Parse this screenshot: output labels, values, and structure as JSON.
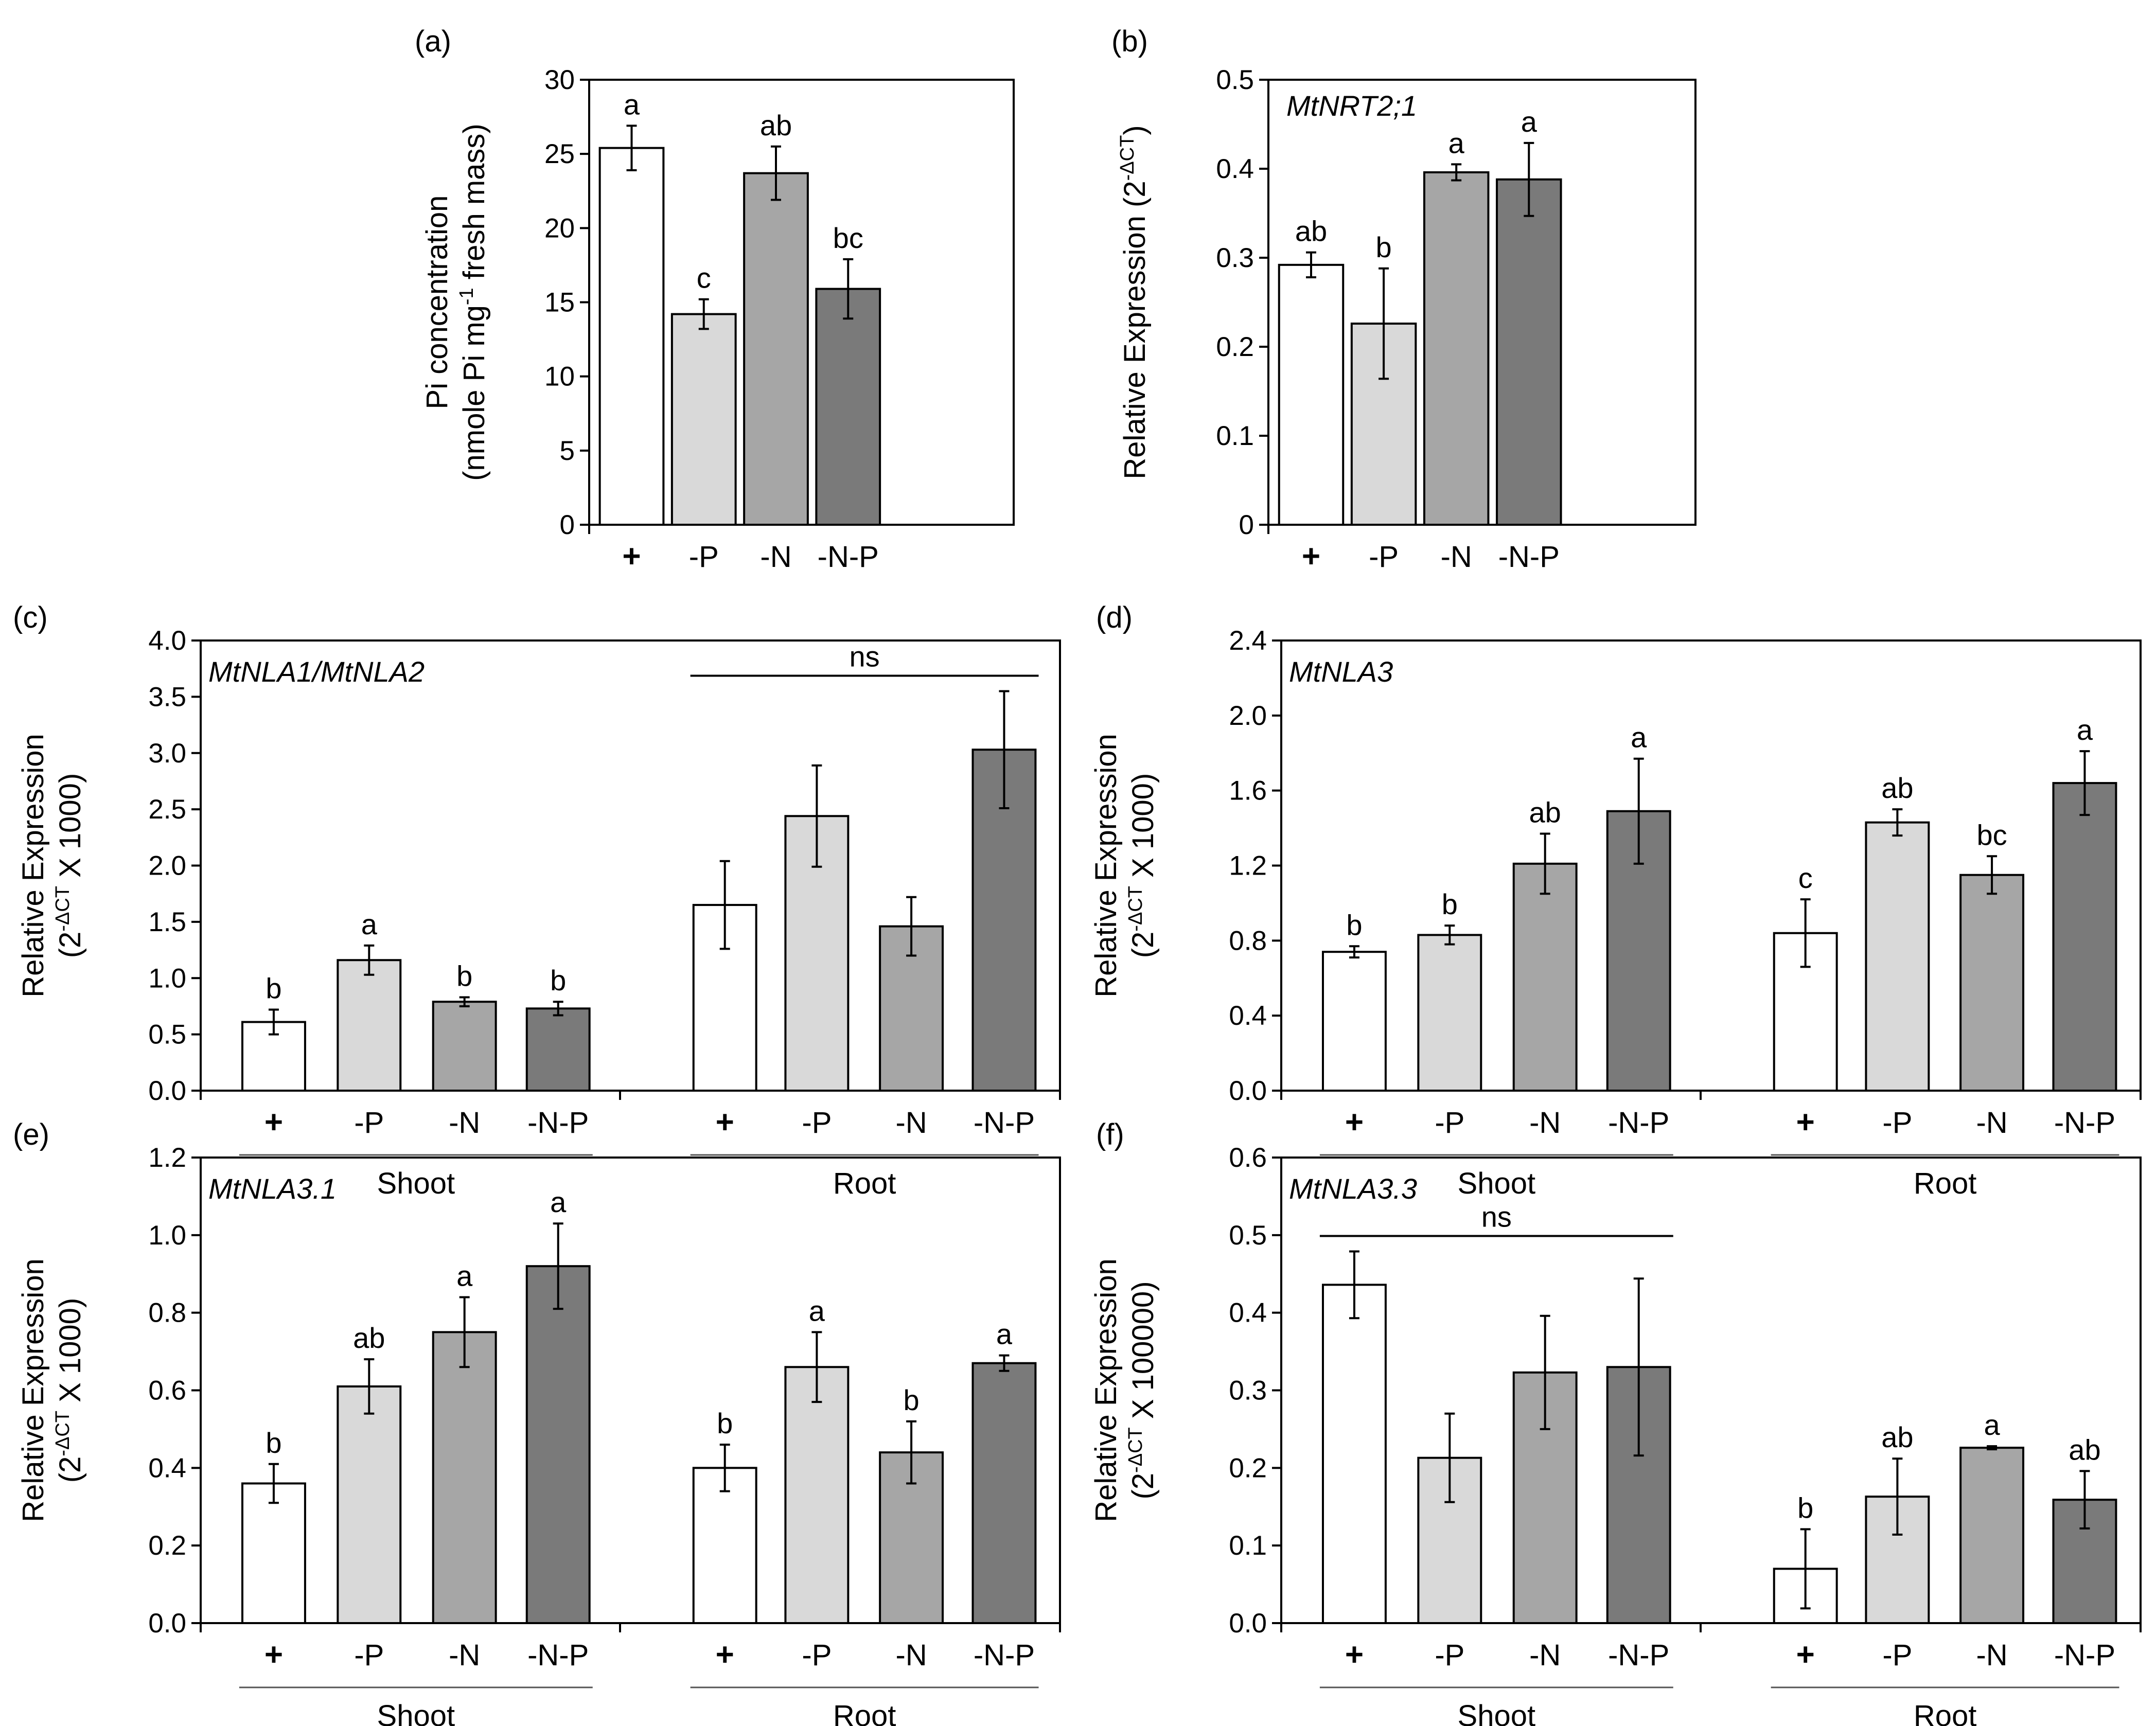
{
  "colors": {
    "+": "#ffffff",
    "-P": "#d9d9d9",
    "-N": "#a6a6a6",
    "-N-P": "#7a7a7a",
    "frame": "#000000"
  },
  "chart_data": [
    {
      "id": "a",
      "panel_label": "(a)",
      "type": "bar",
      "title": "",
      "gene": "",
      "ylabel_lines": [
        "Pi concentration",
        "(nmole Pi mg",
        "-1",
        " fresh mass)"
      ],
      "ylim": [
        0,
        30
      ],
      "yticks": [
        "0",
        "5",
        "10",
        "15",
        "20",
        "25",
        "30"
      ],
      "categories": [
        "+",
        "-P",
        "-N",
        "-N-P"
      ],
      "groups": [
        {
          "name": "",
          "values": [
            25.4,
            14.2,
            23.7,
            15.9
          ],
          "errors": [
            1.5,
            1.0,
            1.8,
            2.0
          ],
          "letters": [
            "a",
            "c",
            "ab",
            "bc"
          ]
        }
      ],
      "ns": []
    },
    {
      "id": "b",
      "panel_label": "(b)",
      "type": "bar",
      "title": "",
      "gene": "MtNRT2;1",
      "ylabel_lines": [
        "Relative Expression (2",
        "-ΔCT",
        ")"
      ],
      "ylim": [
        0,
        0.5
      ],
      "yticks": [
        "0",
        "0.1",
        "0.2",
        "0.3",
        "0.4",
        "0.5"
      ],
      "categories": [
        "+",
        "-P",
        "-N",
        "-N-P"
      ],
      "groups": [
        {
          "name": "",
          "values": [
            0.292,
            0.226,
            0.396,
            0.388
          ],
          "errors": [
            0.014,
            0.062,
            0.009,
            0.041
          ],
          "letters": [
            "ab",
            "b",
            "a",
            "a"
          ]
        }
      ],
      "ns": []
    },
    {
      "id": "c",
      "panel_label": "(c)",
      "type": "bar",
      "gene": "MtNLA1/MtNLA2",
      "ylabel_lines": [
        "Relative Expression",
        "(2",
        "-ΔCT",
        " X 1000)"
      ],
      "ylim": [
        0,
        4.0
      ],
      "yticks": [
        "0.0",
        "0.5",
        "1.0",
        "1.5",
        "2.0",
        "2.5",
        "3.0",
        "3.5",
        "4.0"
      ],
      "categories": [
        "+",
        "-P",
        "-N",
        "-N-P"
      ],
      "groups": [
        {
          "name": "Shoot",
          "values": [
            0.61,
            1.16,
            0.79,
            0.73
          ],
          "errors": [
            0.11,
            0.13,
            0.04,
            0.06
          ],
          "letters": [
            "b",
            "a",
            "b",
            "b"
          ]
        },
        {
          "name": "Root",
          "values": [
            1.65,
            2.44,
            1.46,
            3.03
          ],
          "errors": [
            0.39,
            0.45,
            0.26,
            0.52
          ],
          "letters": [
            "",
            "",
            "",
            ""
          ]
        }
      ],
      "ns": [
        {
          "group": 1,
          "label": "ns"
        }
      ]
    },
    {
      "id": "d",
      "panel_label": "(d)",
      "type": "bar",
      "gene": "MtNLA3",
      "ylabel_lines": [
        "Relative Expression",
        "(2",
        "-ΔCT",
        " X 1000)"
      ],
      "ylim": [
        0,
        2.4
      ],
      "yticks": [
        "0.0",
        "0.4",
        "0.8",
        "1.2",
        "1.6",
        "2.0",
        "2.4"
      ],
      "categories": [
        "+",
        "-P",
        "-N",
        "-N-P"
      ],
      "groups": [
        {
          "name": "Shoot",
          "values": [
            0.74,
            0.83,
            1.21,
            1.49
          ],
          "errors": [
            0.03,
            0.05,
            0.16,
            0.28
          ],
          "letters": [
            "b",
            "b",
            "ab",
            "a"
          ]
        },
        {
          "name": "Root",
          "values": [
            0.84,
            1.43,
            1.15,
            1.64
          ],
          "errors": [
            0.18,
            0.07,
            0.1,
            0.17
          ],
          "letters": [
            "c",
            "ab",
            "bc",
            "a"
          ]
        }
      ],
      "ns": []
    },
    {
      "id": "e",
      "panel_label": "(e)",
      "type": "bar",
      "gene": "MtNLA3.1",
      "ylabel_lines": [
        "Relative Expression",
        "(2",
        "-ΔCT",
        " X 1000)"
      ],
      "ylim": [
        0,
        1.2
      ],
      "yticks": [
        "0.0",
        "0.2",
        "0.4",
        "0.6",
        "0.8",
        "1.0",
        "1.2"
      ],
      "categories": [
        "+",
        "-P",
        "-N",
        "-N-P"
      ],
      "groups": [
        {
          "name": "Shoot",
          "values": [
            0.36,
            0.61,
            0.75,
            0.92
          ],
          "errors": [
            0.05,
            0.07,
            0.09,
            0.11
          ],
          "letters": [
            "b",
            "ab",
            "a",
            "a"
          ]
        },
        {
          "name": "Root",
          "values": [
            0.4,
            0.66,
            0.44,
            0.67
          ],
          "errors": [
            0.06,
            0.09,
            0.08,
            0.02
          ],
          "letters": [
            "b",
            "a",
            "b",
            "a"
          ]
        }
      ],
      "ns": []
    },
    {
      "id": "f",
      "panel_label": "(f)",
      "type": "bar",
      "gene": "MtNLA3.3",
      "ylabel_lines": [
        "Relative Expression",
        "(2",
        "-ΔCT",
        " X 100000)"
      ],
      "ylim": [
        0,
        0.6
      ],
      "yticks": [
        "0.0",
        "0.1",
        "0.2",
        "0.3",
        "0.4",
        "0.5",
        "0.6"
      ],
      "categories": [
        "+",
        "-P",
        "-N",
        "-N-P"
      ],
      "groups": [
        {
          "name": "Shoot",
          "values": [
            0.436,
            0.213,
            0.323,
            0.33
          ],
          "errors": [
            0.043,
            0.057,
            0.073,
            0.114
          ],
          "letters": [
            "",
            "",
            "",
            ""
          ]
        },
        {
          "name": "Root",
          "values": [
            0.07,
            0.163,
            0.226,
            0.159
          ],
          "errors": [
            0.051,
            0.049,
            0.002,
            0.037
          ],
          "letters": [
            "b",
            "ab",
            "a",
            "ab"
          ]
        }
      ],
      "ns": [
        {
          "group": 0,
          "label": "ns"
        }
      ]
    }
  ]
}
